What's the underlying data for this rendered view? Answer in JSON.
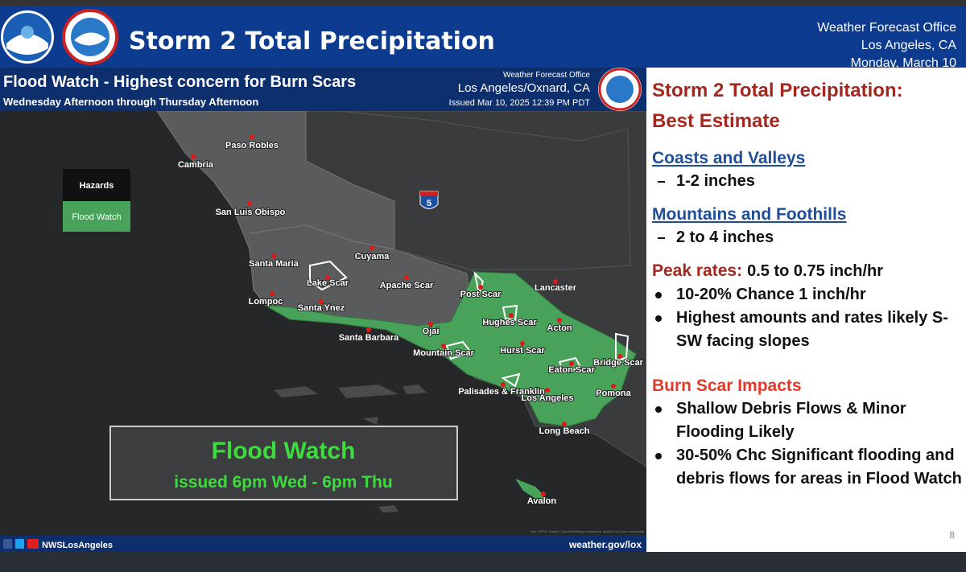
{
  "header": {
    "title": "Storm 2 Total Precipitation",
    "office": [
      "Weather Forecast Office",
      "Los Angeles, CA",
      "Monday, March 10"
    ]
  },
  "map": {
    "title": "Flood Watch - Highest concern for Burn Scars",
    "subtitle": "Wednesday Afternoon through Thursday Afternoon",
    "office": [
      "Weather Forecast Office",
      "Los Angeles/Oxnard, CA",
      "Issued Mar 10, 2025 12:39 PM PDT"
    ],
    "legend": [
      "Hazards",
      "Flood Watch"
    ],
    "highway": "5",
    "places": [
      "Paso Robles",
      "Cambria",
      "San Luis Obispo",
      "Santa Maria",
      "Cuyama",
      "Lake Scar",
      "Apache Scar",
      "Post Scar",
      "Lancaster",
      "Lompoc",
      "Santa Ynez",
      "Hughes Scar",
      "Acton",
      "Santa Barbara",
      "Ojai",
      "Mountain Scar",
      "Hurst Scar",
      "Bridge Scar",
      "Eaton Scar",
      "Palisades & Franklin",
      "Los Angeles",
      "Pomona",
      "Long Beach",
      "Avalon"
    ],
    "box": {
      "title": "Flood Watch",
      "subtitle": "issued 6pm Wed - 6pm Thu"
    },
    "attribution": "Esri, HERE, Garmin, OpenStreetMap contributors, and the GIS user community",
    "footer": {
      "handle": "NWSLosAngeles",
      "url": "weather.gov/lox"
    }
  },
  "panel": {
    "heading": [
      "Storm 2 Total Precipitation:",
      "Best Estimate"
    ],
    "sections": [
      {
        "title": "Coasts and Valleys",
        "items": [
          "1-2 inches"
        ]
      },
      {
        "title": "Mountains and Foothills",
        "items": [
          "2 to 4 inches"
        ]
      },
      {
        "title": "Peak rates:",
        "value": "0.5 to 0.75 inch/hr",
        "items": [
          "10-20% Chance 1 inch/hr",
          "Highest amounts and rates likely S-SW facing slopes"
        ]
      },
      {
        "title": "Burn Scar Impacts",
        "items": [
          "Shallow Debris Flows & Minor Flooding Likely",
          "30-50% Chc Significant flooding and debris flows for areas in Flood Watch"
        ]
      }
    ],
    "page": "8"
  }
}
